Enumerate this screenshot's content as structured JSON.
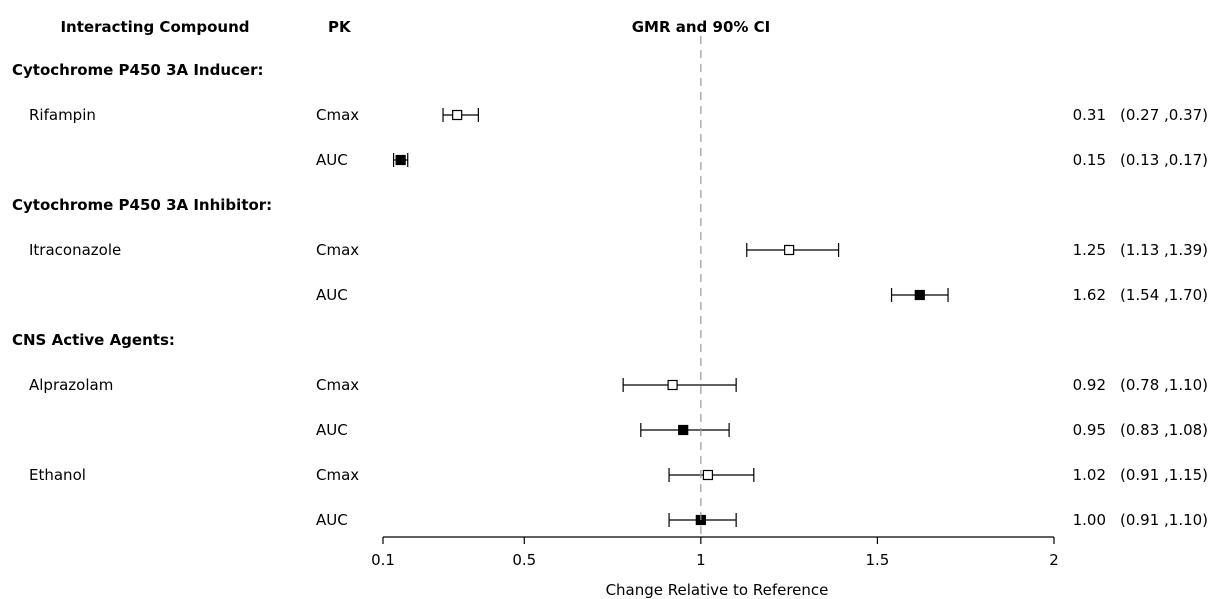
{
  "headers": {
    "compound": "Interacting Compound",
    "pk": "PK",
    "gmr": "GMR and 90% CI"
  },
  "chart_data": {
    "type": "forest",
    "xlabel": "Change Relative to Reference",
    "xlim": [
      0.1,
      2.0
    ],
    "reference_line": 1.0,
    "ticks": [
      {
        "value": 0.1,
        "label": "0.1"
      },
      {
        "value": 0.5,
        "label": "0.5"
      },
      {
        "value": 1.0,
        "label": "1"
      },
      {
        "value": 1.5,
        "label": "1.5"
      },
      {
        "value": 2.0,
        "label": "2"
      }
    ],
    "rows": [
      {
        "kind": "group",
        "label": "Cytochrome P450 3A Inducer:"
      },
      {
        "kind": "data",
        "compound": "Rifampin",
        "pk": "Cmax",
        "gmr": 0.31,
        "lo": 0.27,
        "hi": 0.37,
        "gmr_text": "0.31",
        "ci_text": "(0.27 ,0.37)"
      },
      {
        "kind": "data",
        "compound": "",
        "pk": "AUC",
        "gmr": 0.15,
        "lo": 0.13,
        "hi": 0.17,
        "gmr_text": "0.15",
        "ci_text": "(0.13 ,0.17)"
      },
      {
        "kind": "group",
        "label": "Cytochrome P450 3A Inhibitor:"
      },
      {
        "kind": "data",
        "compound": "Itraconazole",
        "pk": "Cmax",
        "gmr": 1.25,
        "lo": 1.13,
        "hi": 1.39,
        "gmr_text": "1.25",
        "ci_text": "(1.13 ,1.39)"
      },
      {
        "kind": "data",
        "compound": "",
        "pk": "AUC",
        "gmr": 1.62,
        "lo": 1.54,
        "hi": 1.7,
        "gmr_text": "1.62",
        "ci_text": "(1.54 ,1.70)"
      },
      {
        "kind": "group",
        "label": "CNS Active Agents:"
      },
      {
        "kind": "data",
        "compound": "Alprazolam",
        "pk": "Cmax",
        "gmr": 0.92,
        "lo": 0.78,
        "hi": 1.1,
        "gmr_text": "0.92",
        "ci_text": "(0.78 ,1.10)"
      },
      {
        "kind": "data",
        "compound": "",
        "pk": "AUC",
        "gmr": 0.95,
        "lo": 0.83,
        "hi": 1.08,
        "gmr_text": "0.95",
        "ci_text": "(0.83 ,1.08)"
      },
      {
        "kind": "data",
        "compound": "Ethanol",
        "pk": "Cmax",
        "gmr": 1.02,
        "lo": 0.91,
        "hi": 1.15,
        "gmr_text": "1.02",
        "ci_text": "(0.91 ,1.15)"
      },
      {
        "kind": "data",
        "compound": "",
        "pk": "AUC",
        "gmr": 1.0,
        "lo": 0.91,
        "hi": 1.1,
        "gmr_text": "1.00",
        "ci_text": "(0.91 ,1.10)"
      }
    ],
    "marker_style": {
      "Cmax": "open-square",
      "AUC": "filled-square"
    }
  }
}
